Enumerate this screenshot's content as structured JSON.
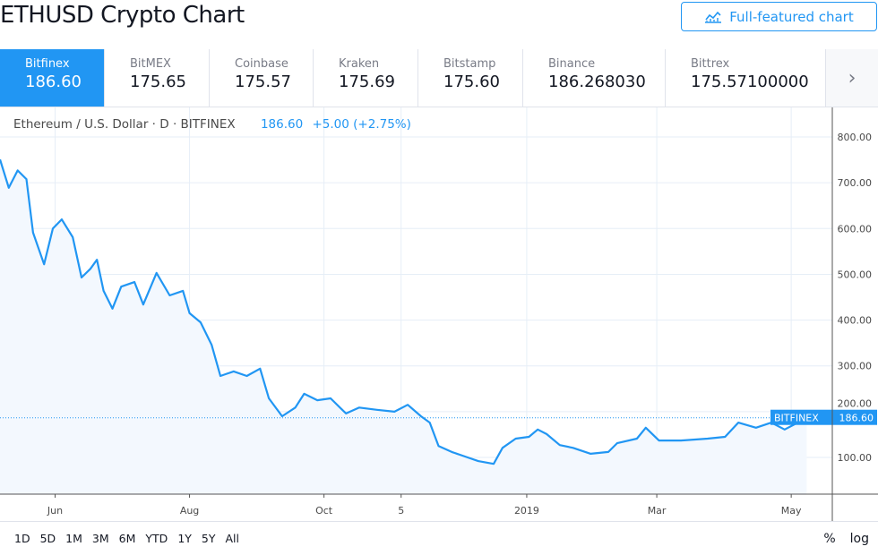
{
  "header": {
    "title": "ETHUSD Crypto Chart",
    "full_featured_label": "Full-featured chart"
  },
  "exchanges": [
    {
      "name": "Bitfinex",
      "price": "186.60",
      "active": true
    },
    {
      "name": "BitMEX",
      "price": "175.65"
    },
    {
      "name": "Coinbase",
      "price": "175.57"
    },
    {
      "name": "Kraken",
      "price": "175.69"
    },
    {
      "name": "Bitstamp",
      "price": "175.60"
    },
    {
      "name": "Binance",
      "price": "186.268030"
    },
    {
      "name": "Bittrex",
      "price": "175.57100000"
    }
  ],
  "legend": {
    "symbol": "Ethereum / U.S. Dollar · D · BITFINEX",
    "price": "186.60",
    "change": "+5.00 (+2.75%)"
  },
  "ranges": [
    "1D",
    "5D",
    "1M",
    "3M",
    "6M",
    "YTD",
    "1Y",
    "5Y",
    "All"
  ],
  "scale_options": {
    "percent": "%",
    "log": "log"
  },
  "colors": {
    "accent": "#2196f3",
    "line": "#2196f3",
    "fill": "#f3f8fe",
    "grid": "#e6eef7"
  },
  "chart_data": {
    "type": "area",
    "ylim": [
      0,
      850
    ],
    "yticks": [
      "800.00",
      "700.00",
      "600.00",
      "500.00",
      "400.00",
      "300.00",
      "200.00",
      "100.00"
    ],
    "xticks": [
      {
        "label": "Jun",
        "date": "2018-06-01"
      },
      {
        "label": "Aug",
        "date": "2018-08-01"
      },
      {
        "label": "Oct",
        "date": "2018-10-01"
      },
      {
        "label": "5",
        "date": "2018-11-05"
      },
      {
        "label": "2019",
        "date": "2019-01-01"
      },
      {
        "label": "Mar",
        "date": "2019-03-01"
      },
      {
        "label": "May",
        "date": "2019-05-01"
      }
    ],
    "last_label": {
      "name": "BITFINEX",
      "value": "186.60"
    },
    "points": [
      [
        "2018-05-07",
        751
      ],
      [
        "2018-05-11",
        689
      ],
      [
        "2018-05-15",
        727
      ],
      [
        "2018-05-19",
        708
      ],
      [
        "2018-05-22",
        591
      ],
      [
        "2018-05-27",
        522
      ],
      [
        "2018-05-31",
        600
      ],
      [
        "2018-06-04",
        620
      ],
      [
        "2018-06-09",
        581
      ],
      [
        "2018-06-13",
        493
      ],
      [
        "2018-06-17",
        512
      ],
      [
        "2018-06-20",
        532
      ],
      [
        "2018-06-23",
        464
      ],
      [
        "2018-06-27",
        425
      ],
      [
        "2018-07-01",
        473
      ],
      [
        "2018-07-07",
        483
      ],
      [
        "2018-07-11",
        434
      ],
      [
        "2018-07-17",
        503
      ],
      [
        "2018-07-23",
        454
      ],
      [
        "2018-07-29",
        464
      ],
      [
        "2018-08-01",
        415
      ],
      [
        "2018-08-06",
        395
      ],
      [
        "2018-08-11",
        346
      ],
      [
        "2018-08-15",
        278
      ],
      [
        "2018-08-21",
        288
      ],
      [
        "2018-08-27",
        278
      ],
      [
        "2018-09-02",
        294
      ],
      [
        "2018-09-06",
        229
      ],
      [
        "2018-09-12",
        190
      ],
      [
        "2018-09-18",
        209
      ],
      [
        "2018-09-22",
        239
      ],
      [
        "2018-09-28",
        225
      ],
      [
        "2018-10-04",
        229
      ],
      [
        "2018-10-11",
        196
      ],
      [
        "2018-10-17",
        209
      ],
      [
        "2018-10-25",
        204
      ],
      [
        "2018-11-02",
        200
      ],
      [
        "2018-11-08",
        215
      ],
      [
        "2018-11-14",
        190
      ],
      [
        "2018-11-18",
        176
      ],
      [
        "2018-11-22",
        125
      ],
      [
        "2018-11-28",
        112
      ],
      [
        "2018-12-04",
        102
      ],
      [
        "2018-12-10",
        92
      ],
      [
        "2018-12-17",
        86
      ],
      [
        "2018-12-21",
        121
      ],
      [
        "2018-12-27",
        141
      ],
      [
        "2019-01-02",
        145
      ],
      [
        "2019-01-06",
        161
      ],
      [
        "2019-01-10",
        151
      ],
      [
        "2019-01-16",
        127
      ],
      [
        "2019-01-22",
        121
      ],
      [
        "2019-01-30",
        108
      ],
      [
        "2019-02-07",
        112
      ],
      [
        "2019-02-11",
        131
      ],
      [
        "2019-02-20",
        141
      ],
      [
        "2019-02-24",
        165
      ],
      [
        "2019-03-02",
        137
      ],
      [
        "2019-03-12",
        137
      ],
      [
        "2019-03-24",
        141
      ],
      [
        "2019-04-01",
        145
      ],
      [
        "2019-04-07",
        176
      ],
      [
        "2019-04-15",
        165
      ],
      [
        "2019-04-22",
        176
      ],
      [
        "2019-04-28",
        161
      ],
      [
        "2019-05-04",
        176
      ],
      [
        "2019-05-08",
        186.6
      ]
    ]
  }
}
